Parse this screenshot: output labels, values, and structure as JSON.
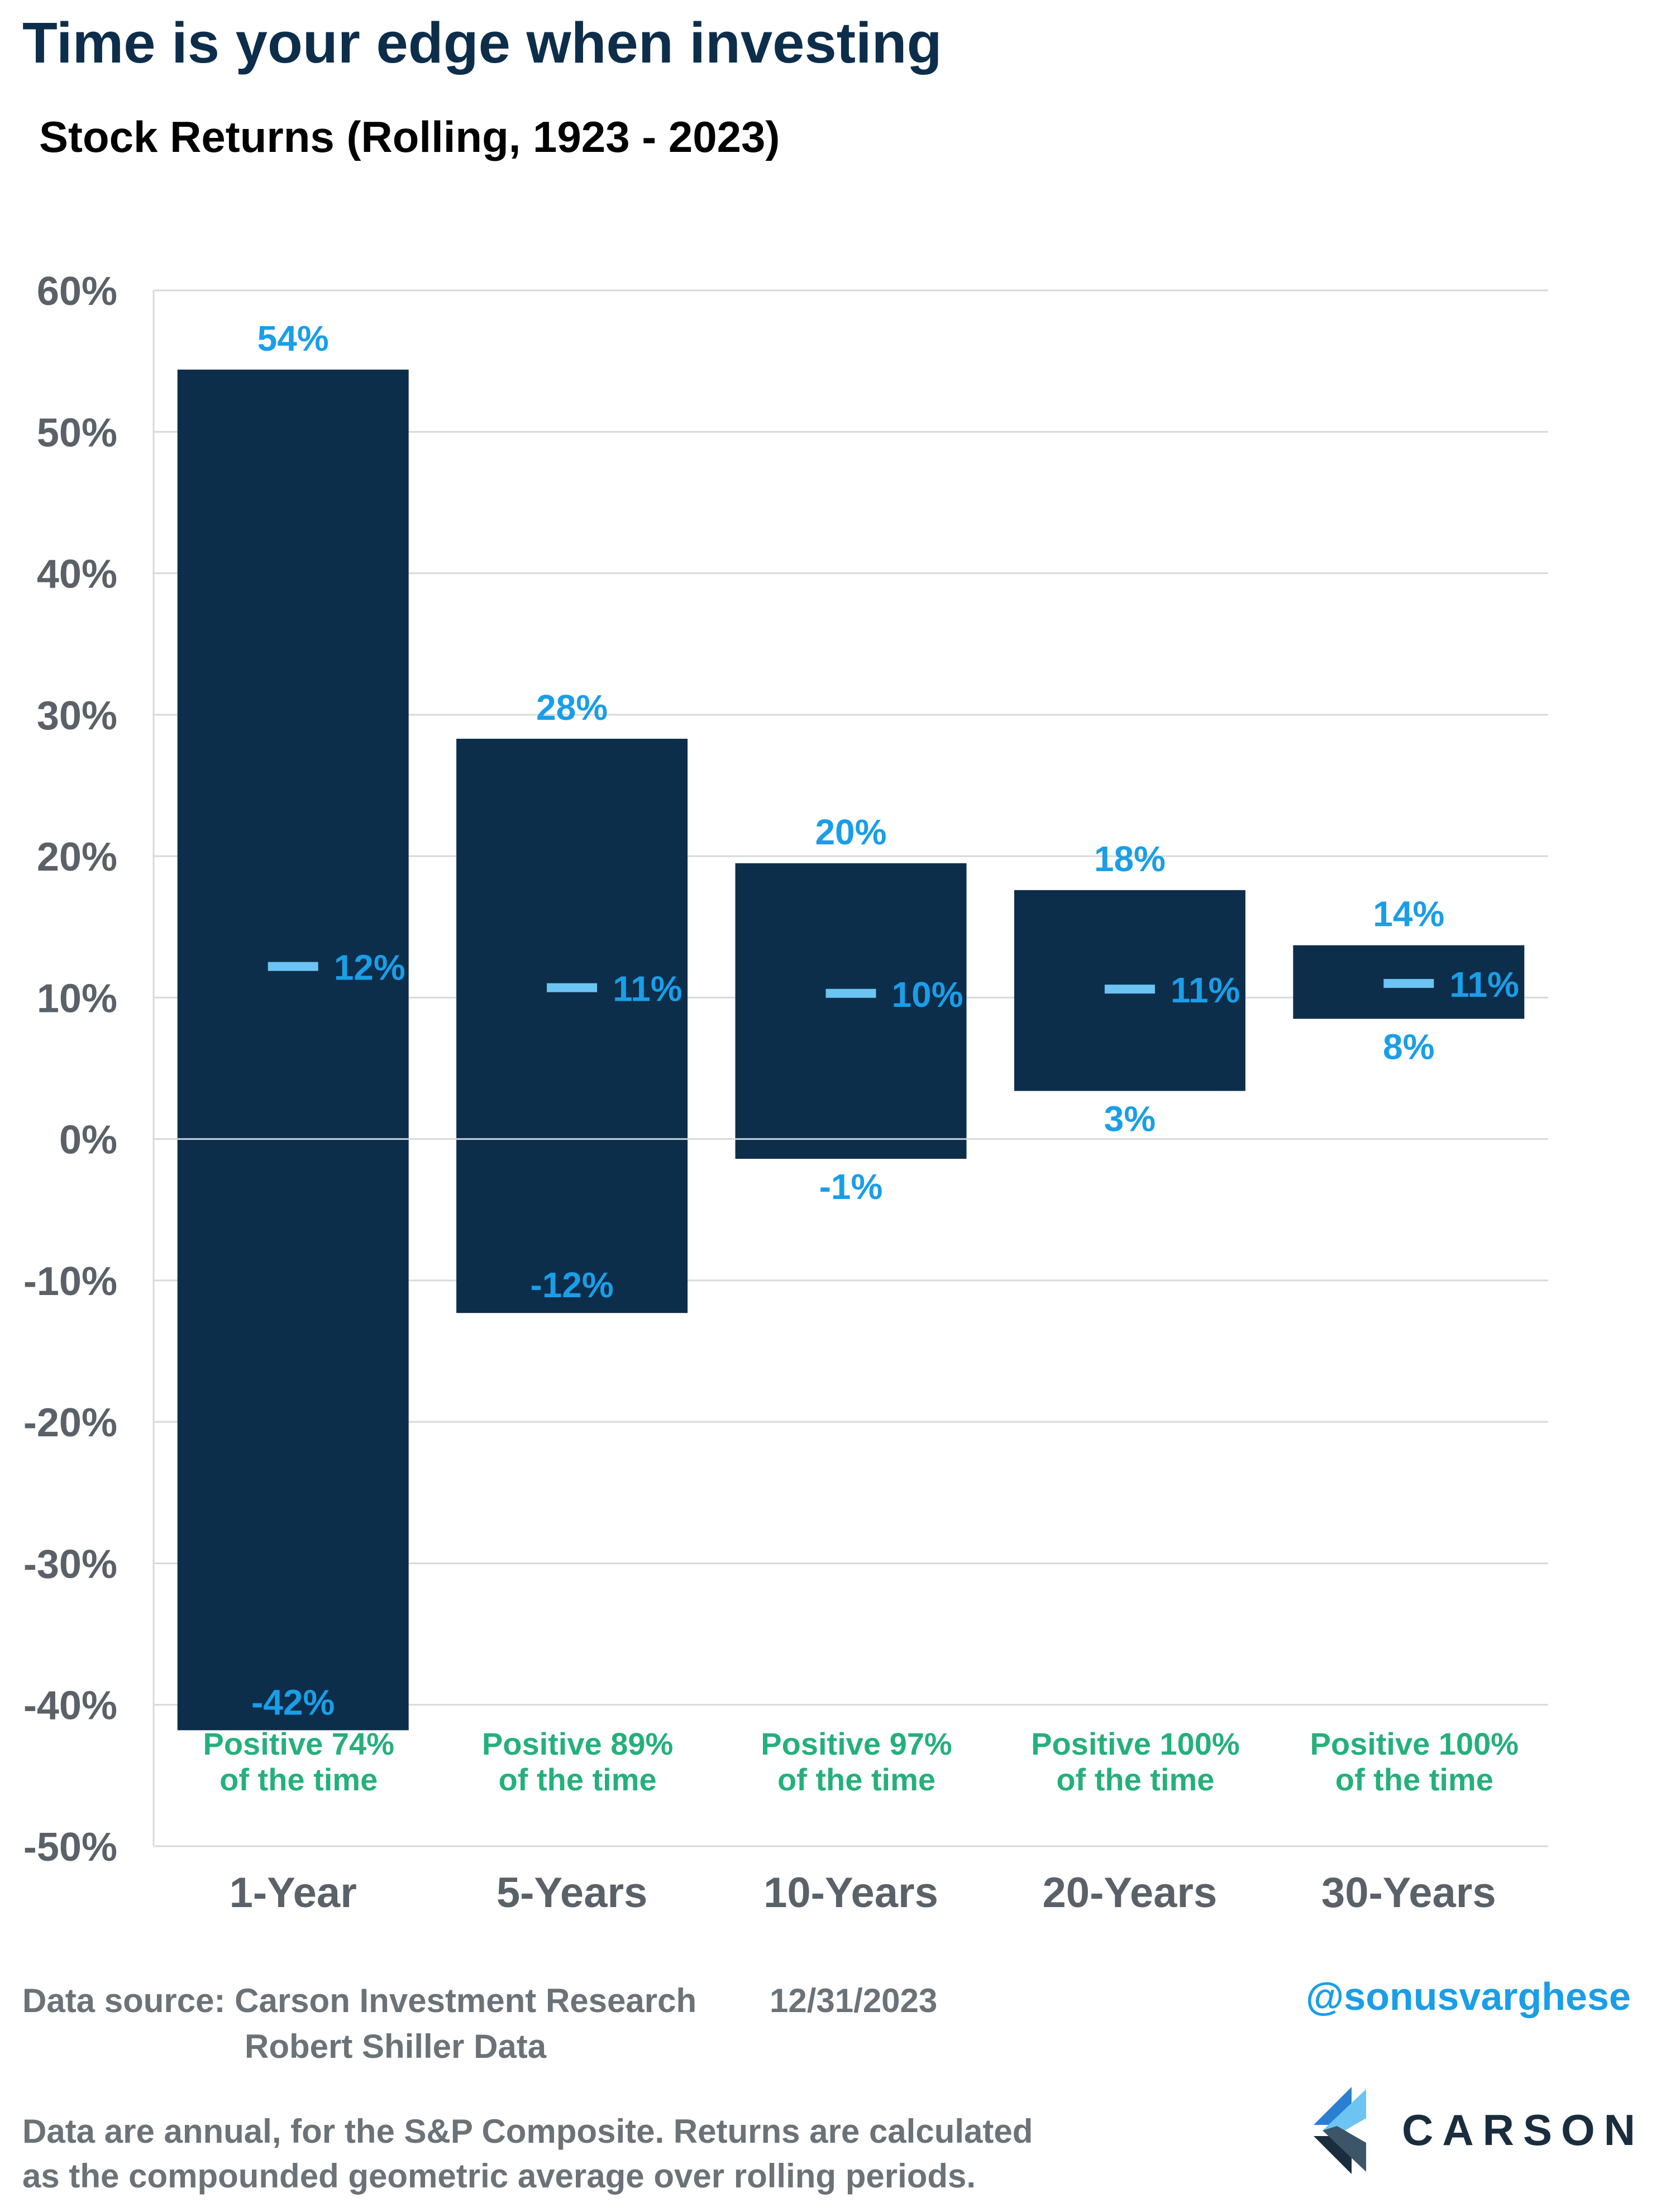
{
  "title": "Time is your edge when investing",
  "subtitle": "Stock Returns (Rolling, 1923 - 2023)",
  "colors": {
    "bar": "#0d2e4b",
    "range_label": "#1a9ee8",
    "avg_marker": "#6cc4f2",
    "positive_note": "#25b07b",
    "axis_text": "#5b6168",
    "grid": "#d9d9d9"
  },
  "chart_data": {
    "type": "bar",
    "subtype": "floating-range",
    "title": "Stock Returns (Rolling, 1923 - 2023)",
    "ylim": [
      -50,
      60
    ],
    "yticks": [
      60,
      50,
      40,
      30,
      20,
      10,
      0,
      -10,
      -20,
      -30,
      -40,
      -50
    ],
    "ytick_labels": [
      "60%",
      "50%",
      "40%",
      "30%",
      "20%",
      "10%",
      "0%",
      "-10%",
      "-20%",
      "-30%",
      "-40%",
      "-50%"
    ],
    "grid": true,
    "categories": [
      "1-Year",
      "5-Years",
      "10-Years",
      "20-Years",
      "30-Years"
    ],
    "bars": [
      {
        "category": "1-Year",
        "max": 54.4,
        "min": -41.8,
        "avg": 12.2,
        "max_label": "54%",
        "min_label": "-42%",
        "avg_label": "12%",
        "note_line1": "Positive 74%",
        "note_line2": "of the time"
      },
      {
        "category": "5-Years",
        "max": 28.3,
        "min": -12.3,
        "avg": 10.7,
        "max_label": "28%",
        "min_label": "-12%",
        "avg_label": "11%",
        "note_line1": "Positive 89%",
        "note_line2": "of the time"
      },
      {
        "category": "10-Years",
        "max": 19.5,
        "min": -1.4,
        "avg": 10.3,
        "max_label": "20%",
        "min_label": "-1%",
        "avg_label": "10%",
        "note_line1": "Positive 97%",
        "note_line2": "of the time"
      },
      {
        "category": "20-Years",
        "max": 17.6,
        "min": 3.4,
        "avg": 10.6,
        "max_label": "18%",
        "min_label": "3%",
        "avg_label": "11%",
        "note_line1": "Positive 100%",
        "note_line2": "of the time"
      },
      {
        "category": "30-Years",
        "max": 13.7,
        "min": 8.5,
        "avg": 11.0,
        "max_label": "14%",
        "min_label": "8%",
        "avg_label": "11%",
        "note_line1": "Positive 100%",
        "note_line2": "of the time"
      }
    ]
  },
  "footer": {
    "source_label": "Data source: Carson Investment Research",
    "source_date": "12/31/2023",
    "source_line2": "Robert Shiller Data",
    "note_line1": "Data are annual, for the S&P Composite. Returns are calculated",
    "note_line2": "as the compounded geometric average over rolling periods.",
    "handle": "@sonusvarghese",
    "logo_text": "CARSON"
  }
}
